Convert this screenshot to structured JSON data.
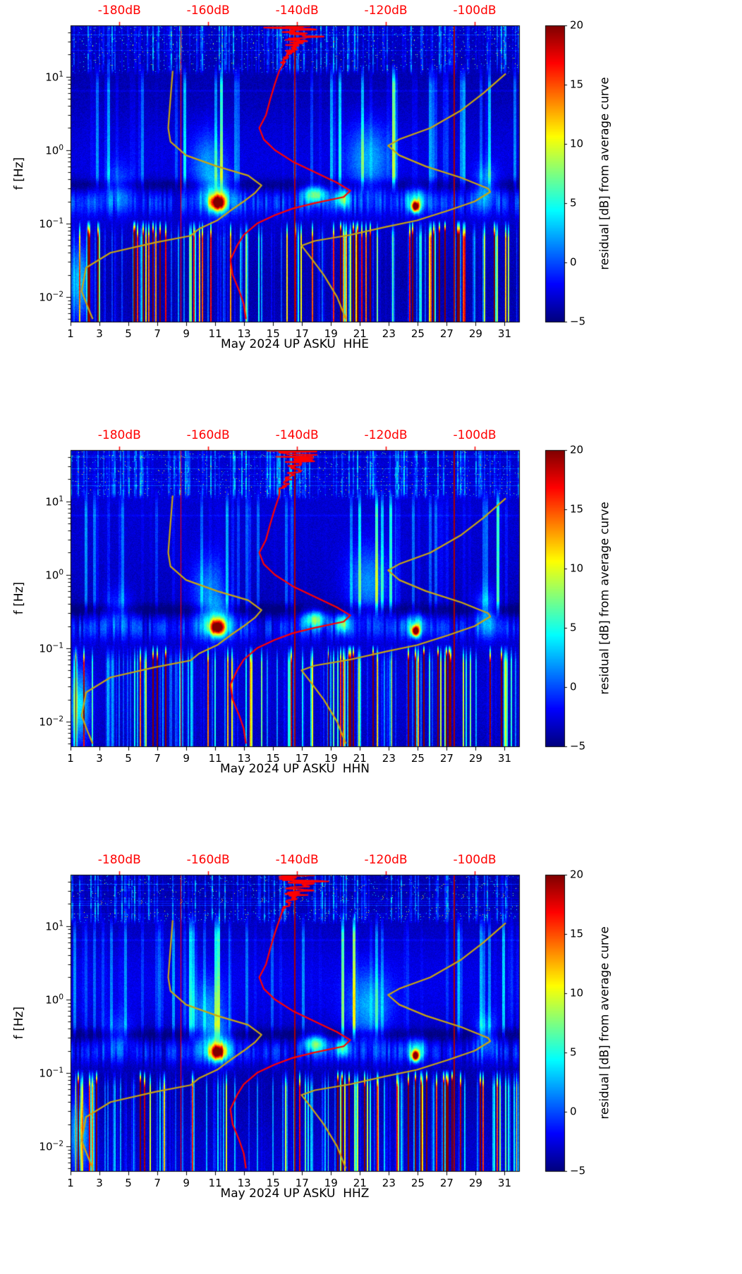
{
  "figure": {
    "ylabel": "f [Hz]",
    "top_axis": {
      "color": "#ff0000",
      "tick_labels": [
        "-180dB",
        "-160dB",
        "-140dB",
        "-120dB",
        "-100dB"
      ],
      "tick_values_db": [
        -180,
        -160,
        -140,
        -120,
        -100
      ],
      "range_db": [
        -191,
        -90
      ]
    },
    "x_axis": {
      "tick_labels": [
        "1",
        "3",
        "5",
        "7",
        "9",
        "11",
        "13",
        "15",
        "17",
        "19",
        "21",
        "23",
        "25",
        "27",
        "29",
        "31"
      ],
      "tick_values": [
        1,
        3,
        5,
        7,
        9,
        11,
        13,
        15,
        17,
        19,
        21,
        23,
        25,
        27,
        29,
        31
      ],
      "range_days": [
        1,
        32
      ]
    },
    "y_axis": {
      "scale": "log",
      "tick_values_hz": [
        10,
        1,
        0.1,
        0.01
      ],
      "tick_exponents_display": [
        "1",
        "0",
        "−1",
        "−2"
      ],
      "range_hz": [
        0.0046,
        50
      ]
    },
    "colorbar": {
      "label": "residual [dB] from average curve",
      "tick_labels": [
        "20",
        "15",
        "10",
        "5",
        "0",
        "−5"
      ],
      "tick_values": [
        20,
        15,
        10,
        5,
        0,
        -5
      ],
      "range": [
        -5,
        20
      ],
      "colormap": "jet"
    },
    "panels": [
      {
        "channel": "HHE",
        "xlabel": "May 2024 UP ASKU  HHE"
      },
      {
        "channel": "HHN",
        "xlabel": "May 2024 UP ASKU  HHN"
      },
      {
        "channel": "HHZ",
        "xlabel": "May 2024 UP ASKU  HHZ"
      }
    ]
  },
  "chart_data": {
    "type": "heatmap",
    "description": "Three stacked log-frequency spectrogram panels of PSD residuals (jet colormap, -5 to 20 dB) versus day of May 2024 for station UP ASKU, channels HHE, HHN, HHZ. Overlaid curves are referenced to the red top dB axis: red = station average PSD curve, dark-yellow = low and high noise model curves.",
    "panels": [
      "HHE",
      "HHN",
      "HHZ"
    ],
    "x_axis": {
      "label": "May 2024 UP ASKU",
      "range_days": [
        1,
        32
      ]
    },
    "y_axis": {
      "label": "f [Hz]",
      "scale": "log",
      "range_hz": [
        0.0046,
        50
      ]
    },
    "color_axis": {
      "label": "residual [dB] from average curve",
      "range_db": [
        -5,
        20
      ],
      "colormap": "jet"
    },
    "top_axis": {
      "range_db": [
        -191,
        -90
      ]
    },
    "overlay_curves": {
      "average_psd": {
        "color": "#ff0000",
        "points_db_hz": [
          [
            -151.5,
            0.005
          ],
          [
            -152,
            0.008
          ],
          [
            -153,
            0.012
          ],
          [
            -154.5,
            0.02
          ],
          [
            -155,
            0.032
          ],
          [
            -153.5,
            0.05
          ],
          [
            -152,
            0.07
          ],
          [
            -149,
            0.1
          ],
          [
            -145,
            0.13
          ],
          [
            -141,
            0.16
          ],
          [
            -136,
            0.19
          ],
          [
            -129.5,
            0.23
          ],
          [
            -128,
            0.28
          ],
          [
            -131,
            0.36
          ],
          [
            -136,
            0.5
          ],
          [
            -141,
            0.7
          ],
          [
            -145,
            1.0
          ],
          [
            -147.5,
            1.4
          ],
          [
            -148.5,
            2.0
          ],
          [
            -147,
            3.0
          ],
          [
            -146,
            5.0
          ],
          [
            -145,
            8.0
          ],
          [
            -144,
            12
          ],
          [
            -142.5,
            18
          ],
          [
            -141,
            25
          ],
          [
            -139.5,
            35
          ],
          [
            -140,
            50
          ]
        ]
      },
      "low_noise_model": {
        "color": "#c9a511",
        "points_db_hz": [
          [
            -186,
            0.005
          ],
          [
            -187,
            0.007
          ],
          [
            -188.5,
            0.012
          ],
          [
            -187.5,
            0.025
          ],
          [
            -182,
            0.04
          ],
          [
            -172,
            0.055
          ],
          [
            -164,
            0.068
          ],
          [
            -162,
            0.085
          ],
          [
            -158,
            0.11
          ],
          [
            -155,
            0.15
          ],
          [
            -152,
            0.2
          ],
          [
            -149.5,
            0.26
          ],
          [
            -148,
            0.33
          ],
          [
            -151,
            0.45
          ],
          [
            -158,
            0.6
          ],
          [
            -165,
            0.85
          ],
          [
            -168.5,
            1.3
          ],
          [
            -169,
            2.0
          ],
          [
            -168.5,
            5.0
          ],
          [
            -168,
            12
          ]
        ]
      },
      "high_noise_model": {
        "color": "#c9a511",
        "points_db_hz": [
          [
            -129,
            0.005
          ],
          [
            -131,
            0.01
          ],
          [
            -134,
            0.02
          ],
          [
            -137,
            0.035
          ],
          [
            -139,
            0.05
          ],
          [
            -136,
            0.058
          ],
          [
            -128,
            0.07
          ],
          [
            -120,
            0.09
          ],
          [
            -113,
            0.11
          ],
          [
            -106,
            0.15
          ],
          [
            -100,
            0.2
          ],
          [
            -96.5,
            0.27
          ],
          [
            -97,
            0.3
          ],
          [
            -103,
            0.42
          ],
          [
            -111,
            0.6
          ],
          [
            -117,
            0.85
          ],
          [
            -119.5,
            1.15
          ],
          [
            -117,
            1.4
          ],
          [
            -110,
            2.0
          ],
          [
            -103,
            3.5
          ],
          [
            -98,
            6
          ],
          [
            -93,
            11
          ]
        ]
      }
    },
    "heatmap_features": {
      "background_residual_db": -3.4,
      "microseism_band_hz": [
        0.1,
        0.3
      ],
      "hotspots": [
        {
          "day": 11.15,
          "log10f": -0.72,
          "sigma_day": 0.5,
          "sigma_log10f": 0.1,
          "amp_db": 22
        },
        {
          "day": 11.2,
          "log10f": -0.62,
          "sigma_day": 1.0,
          "sigma_log10f": 0.25,
          "amp_db": 7
        },
        {
          "day": 24.85,
          "log10f": -0.77,
          "sigma_day": 0.26,
          "sigma_log10f": 0.07,
          "amp_db": 24
        },
        {
          "day": 24.9,
          "log10f": -0.68,
          "sigma_day": 0.7,
          "sigma_log10f": 0.16,
          "amp_db": 7
        },
        {
          "day": 17.9,
          "log10f": -0.6,
          "sigma_day": 0.8,
          "sigma_log10f": 0.12,
          "amp_db": 10
        },
        {
          "day": 19.8,
          "log10f": -0.66,
          "sigma_day": 0.45,
          "sigma_log10f": 0.12,
          "amp_db": 9
        },
        {
          "day": 21.6,
          "log10f": -0.12,
          "sigma_day": 1.5,
          "sigma_log10f": 0.5,
          "amp_db": 5
        },
        {
          "day": 10.5,
          "log10f": -0.2,
          "sigma_day": 1.2,
          "sigma_log10f": 0.45,
          "amp_db": 4.5
        },
        {
          "day": 29.7,
          "log10f": -0.5,
          "sigma_day": 0.8,
          "sigma_log10f": 0.3,
          "amp_db": 5
        },
        {
          "day": 1.6,
          "log10f": -1.8,
          "sigma_day": 0.7,
          "sigma_log10f": 0.5,
          "amp_db": 7
        },
        {
          "day": 4.3,
          "log10f": -0.5,
          "sigma_day": 1.0,
          "sigma_log10f": 0.3,
          "amp_db": 3.5
        }
      ],
      "low_freq_streak_clusters": [
        [
          1.3,
          3.3,
          1.0
        ],
        [
          5.3,
          7.6,
          1.1
        ],
        [
          9.0,
          12.3,
          0.7
        ],
        [
          12.8,
          14.3,
          0.6
        ],
        [
          15.8,
          17.8,
          0.8
        ],
        [
          18.8,
          22.3,
          1.25
        ],
        [
          23.2,
          23.9,
          0.6
        ],
        [
          24.3,
          28.7,
          1.3
        ],
        [
          29.3,
          31.9,
          0.9
        ]
      ],
      "mid_freq_bright_ranges": [
        [
          8.5,
          12.0,
          1.3
        ],
        [
          19.5,
          23.5,
          1.65
        ],
        [
          27.8,
          31.6,
          1.25
        ]
      ],
      "vertical_lines": [
        {
          "day": 8.62,
          "amp_db": 17
        },
        {
          "day": 16.5,
          "amp_db": 19
        },
        {
          "day": 27.55,
          "amp_db": 19
        }
      ]
    }
  }
}
